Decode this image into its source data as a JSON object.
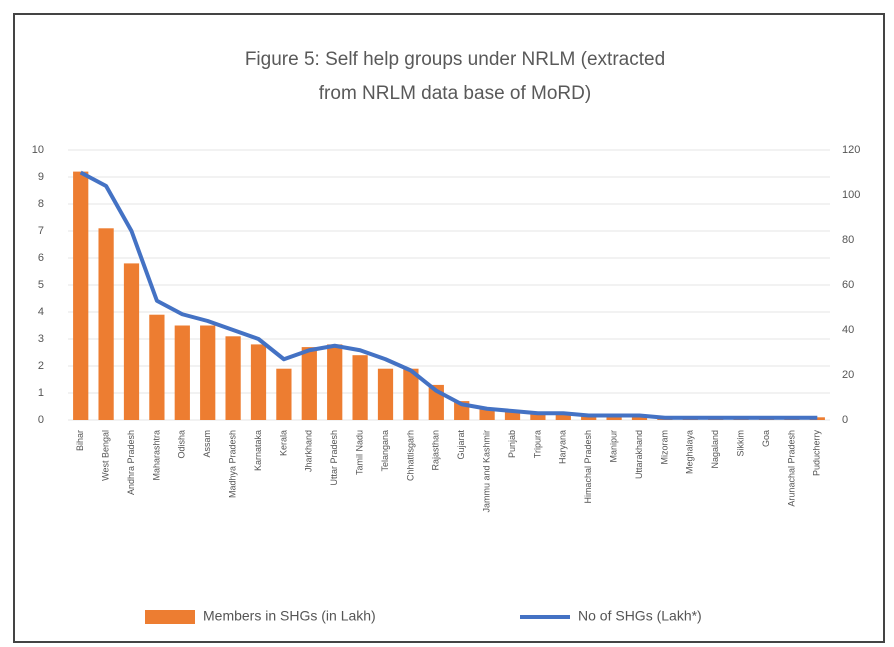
{
  "chart_data": {
    "type": "bar_line",
    "title": "Figure 5: Self help groups under NRLM (extracted from NRLM data base of MoRD)",
    "categories": [
      "Bihar",
      "West Bengal",
      "Andhra Pradesh",
      "Maharashtra",
      "Odisha",
      "Assam",
      "Madhya Pradesh",
      "Karnataka",
      "Kerala",
      "Jharkhand",
      "Uttar Pradesh",
      "Tamil Nadu",
      "Telangana",
      "Chhattisgarh",
      "Rajasthan",
      "Gujarat",
      "Jammu and Kashmir",
      "Punjab",
      "Tripura",
      "Haryana",
      "Himachal Pradesh",
      "Manipur",
      "Uttarakhand",
      "Mizoram",
      "Meghalaya",
      "Nagaland",
      "Sikkim",
      "Goa",
      "Arunachal Pradesh",
      "Puducherry"
    ],
    "series": [
      {
        "name": "Members in SHGs (in Lakh)",
        "color": "#ed7d31",
        "type": "bar",
        "axis": "y",
        "values": [
          9.2,
          7.1,
          5.8,
          3.9,
          3.5,
          3.5,
          3.1,
          2.8,
          1.9,
          2.7,
          2.8,
          2.4,
          1.9,
          1.9,
          1.3,
          0.7,
          0.4,
          0.3,
          0.3,
          0.2,
          0.2,
          0.2,
          0.2,
          0.1,
          0.1,
          0.1,
          0.1,
          0.1,
          0.1,
          0.1
        ]
      },
      {
        "name": "No of SHGs (Lakh*)",
        "color": "#4472c4",
        "type": "line",
        "axis": "y2",
        "values": [
          110,
          104,
          84,
          53,
          47,
          44,
          40,
          36,
          27,
          31,
          33,
          31,
          27,
          22,
          13,
          7,
          5,
          4,
          3,
          3,
          2,
          2,
          2,
          1,
          1,
          1,
          1,
          1,
          1,
          1
        ]
      }
    ],
    "ylim": [
      0,
      10
    ],
    "yticks": [
      0,
      1,
      2,
      3,
      4,
      5,
      6,
      7,
      8,
      9,
      10
    ],
    "y2lim": [
      0,
      120
    ],
    "y2ticks": [
      0,
      20,
      40,
      60,
      80,
      100,
      120
    ],
    "grid": true
  }
}
